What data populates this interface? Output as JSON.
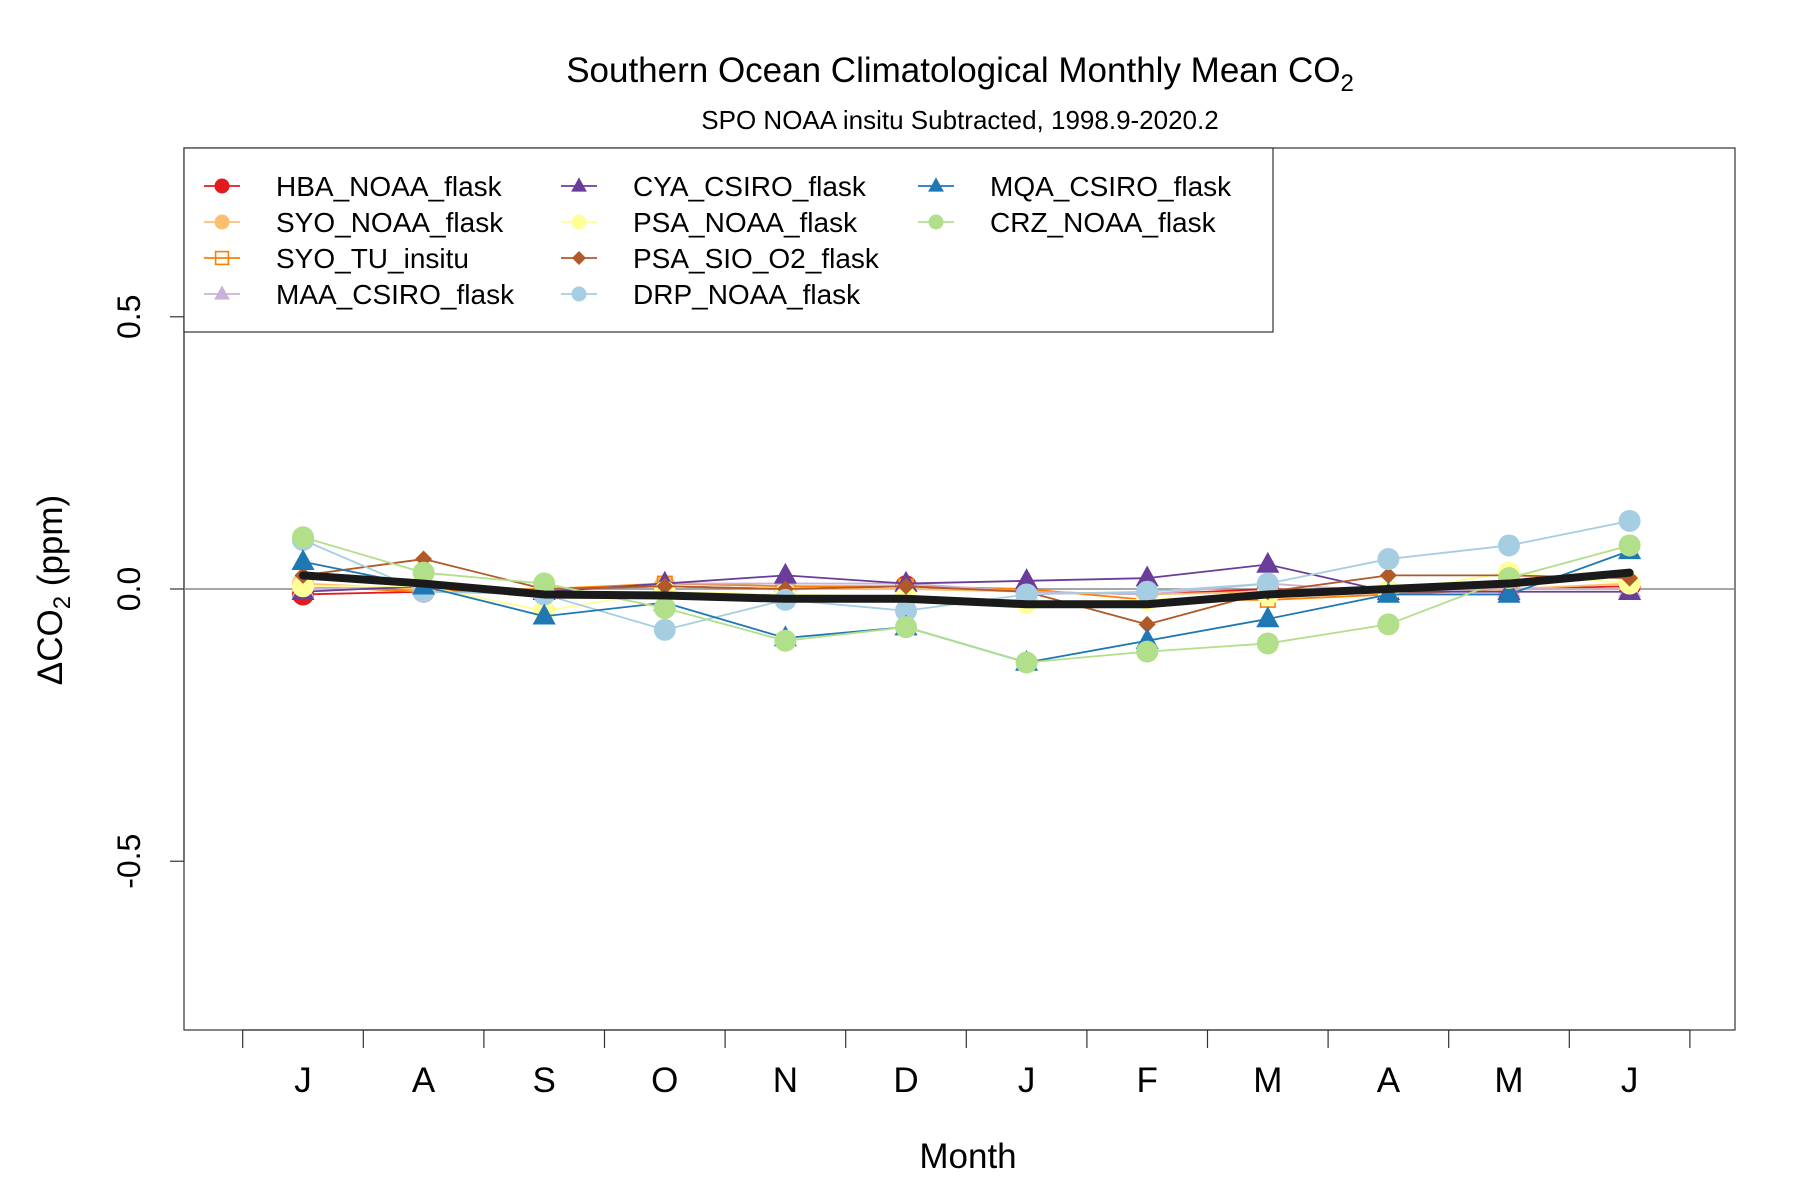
{
  "chart_data": {
    "type": "line",
    "title": "Southern Ocean Climatological Monthly Mean CO",
    "title_sub": "2",
    "subtitle": "SPO NOAA insitu Subtracted, 1998.9-2020.2",
    "xlabel": "Month",
    "ylabel": {
      "prefix": "ΔCO",
      "sub": "2",
      "suffix": " (ppm)"
    },
    "categories": [
      "J",
      "A",
      "S",
      "O",
      "N",
      "D",
      "J",
      "F",
      "M",
      "A",
      "M",
      "J"
    ],
    "ylim": [
      -0.81,
      0.81
    ],
    "yticks": [
      -0.5,
      0.0,
      0.5
    ],
    "ytick_labels": [
      "-0.5",
      "0.0",
      "0.5"
    ],
    "reference_line": 0,
    "legend_position": "top-left",
    "series": [
      {
        "name": "HBA_NOAA_flask",
        "color": "#e31a1c",
        "marker": "circle",
        "values": [
          -0.01,
          -0.005,
          0.0,
          0.005,
          0.0,
          0.005,
          -0.005,
          -0.01,
          0.0,
          -0.005,
          0.0,
          0.005
        ]
      },
      {
        "name": "SYO_NOAA_flask",
        "color": "#fdbf6f",
        "marker": "circle",
        "values": [
          0.01,
          0.0,
          0.0,
          0.005,
          0.0,
          0.0,
          -0.005,
          -0.01,
          -0.005,
          -0.005,
          0.0,
          0.01
        ]
      },
      {
        "name": "SYO_TU_insitu",
        "color": "#ff7f00",
        "marker": "square-open",
        "values": [
          0.005,
          -0.005,
          0.0,
          0.01,
          0.005,
          0.005,
          0.0,
          -0.02,
          -0.02,
          -0.01,
          0.0,
          0.0
        ]
      },
      {
        "name": "MAA_CSIRO_flask",
        "color": "#cab2d6",
        "marker": "triangle",
        "values": [
          0.0,
          0.005,
          -0.005,
          0.01,
          0.01,
          0.01,
          -0.005,
          -0.01,
          0.01,
          -0.005,
          0.0,
          0.0
        ]
      },
      {
        "name": "CYA_CSIRO_flask",
        "color": "#6a3d9a",
        "marker": "triangle",
        "values": [
          -0.005,
          0.005,
          -0.005,
          0.01,
          0.025,
          0.01,
          0.015,
          0.02,
          0.045,
          -0.005,
          -0.005,
          -0.005
        ]
      },
      {
        "name": "PSA_NOAA_flask",
        "color": "#ffff99",
        "marker": "circle",
        "values": [
          0.005,
          0.005,
          -0.04,
          -0.005,
          -0.01,
          -0.015,
          -0.025,
          -0.02,
          -0.01,
          -0.005,
          0.03,
          0.01
        ]
      },
      {
        "name": "PSA_SIO_O2_flask",
        "color": "#b15928",
        "marker": "diamond",
        "values": [
          0.025,
          0.055,
          0.0,
          0.005,
          0.0,
          0.005,
          -0.005,
          -0.065,
          -0.005,
          0.025,
          0.025,
          0.02
        ]
      },
      {
        "name": "DRP_NOAA_flask",
        "color": "#a6cee3",
        "marker": "circle",
        "values": [
          0.09,
          -0.005,
          -0.01,
          -0.075,
          -0.02,
          -0.04,
          -0.01,
          -0.005,
          0.01,
          0.055,
          0.08,
          0.125
        ]
      },
      {
        "name": "MQA_CSIRO_flask",
        "color": "#1f78b4",
        "marker": "triangle",
        "values": [
          0.05,
          0.005,
          -0.05,
          -0.025,
          -0.09,
          -0.07,
          -0.135,
          -0.095,
          -0.055,
          -0.01,
          -0.01,
          0.07
        ]
      },
      {
        "name": "CRZ_NOAA_flask",
        "color": "#b2df8a",
        "marker": "circle",
        "values": [
          0.095,
          0.03,
          0.01,
          -0.035,
          -0.095,
          -0.07,
          -0.135,
          -0.115,
          -0.1,
          -0.065,
          0.02,
          0.08
        ]
      },
      {
        "color": "#1a1a1a",
        "marker": "none",
        "values": [
          0.025,
          0.01,
          -0.01,
          -0.012,
          -0.018,
          -0.018,
          -0.028,
          -0.028,
          -0.01,
          0.0,
          0.01,
          0.03
        ]
      }
    ]
  }
}
